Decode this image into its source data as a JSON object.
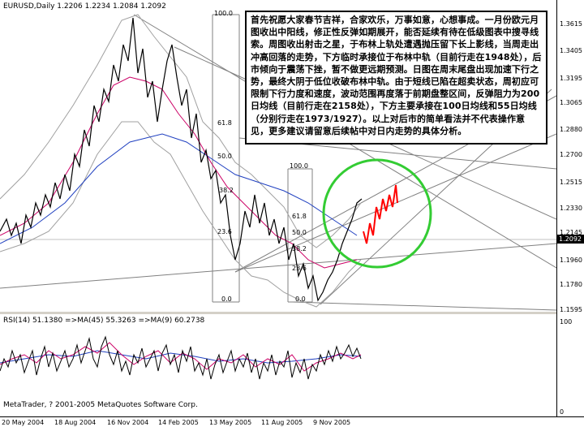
{
  "header": {
    "symbol_info": "EURUSD,Daily  1.2206 1.2234 1.2084 1.2092"
  },
  "note_text": "首先祝愿大家春节吉祥，合家欢乐，万事如意，心想事成。一月份欧元月图收出中阳线，修正性反弹如期展开，能否延续有待在低级图表中搜寻线索。周图收出射击之星，于布林上轨处遭遇抛压留下长上影线，当周走出冲高回落的走势，下方临时承接位于布林中轨（目前行走在1948处），后市倾向于震荡下挫，暂不做更远期预测。日图在周末尾盘出现加速下行之势，最终大阴于低位收破布林中轨。由于短线已陷在超卖状态，周初应可限制下行力度和速度，波动范围再度落于前期盘整区间，反弹阻力为200日均线（目前行走在2158处），下方主要承接在100日均线和55日均线（分别行走在1973/1927）。以上对后市的简单看法并不代表操作意见，更多建议请留意后续帖中对日内走势的具体分析。",
  "price_scale": [
    "1.3615",
    "1.3405",
    "1.3195",
    "1.3065",
    "1.2880",
    "1.2700",
    "1.2515",
    "1.2330",
    "1.2145",
    "1.1960",
    "1.1780",
    "1.1595"
  ],
  "current_price": "1.2092",
  "rsi_scale": [
    "100",
    "0"
  ],
  "rsi_header": "RSI(14) 51.1380  =>MA(45) 55.3263  =>MA(9) 60.2738",
  "copyright": "MetaTrader, ? 2001-2005 MetaQuotes Software Corp.",
  "time_scale": [
    "20 May 2004",
    "18 Aug 2004",
    "16 Nov 2004",
    "14 Feb 2005",
    "13 May 2005",
    "11 Aug 2005",
    "9 Nov 2005"
  ],
  "fib_left": [
    "100.0",
    "61.8",
    "50.0",
    "38.2",
    "23.6",
    "0.0"
  ],
  "fib_right": [
    "100.0",
    "61.8",
    "50.0",
    "38.2",
    "23.6",
    "0.0"
  ],
  "colors": {
    "price": "#000000",
    "ma_red": "#cc0066",
    "ma_blue": "#2040c0",
    "bands": "#a0a0a0",
    "projection": "#ff0000",
    "circle": "#33cc33",
    "lines": "#808080"
  }
}
